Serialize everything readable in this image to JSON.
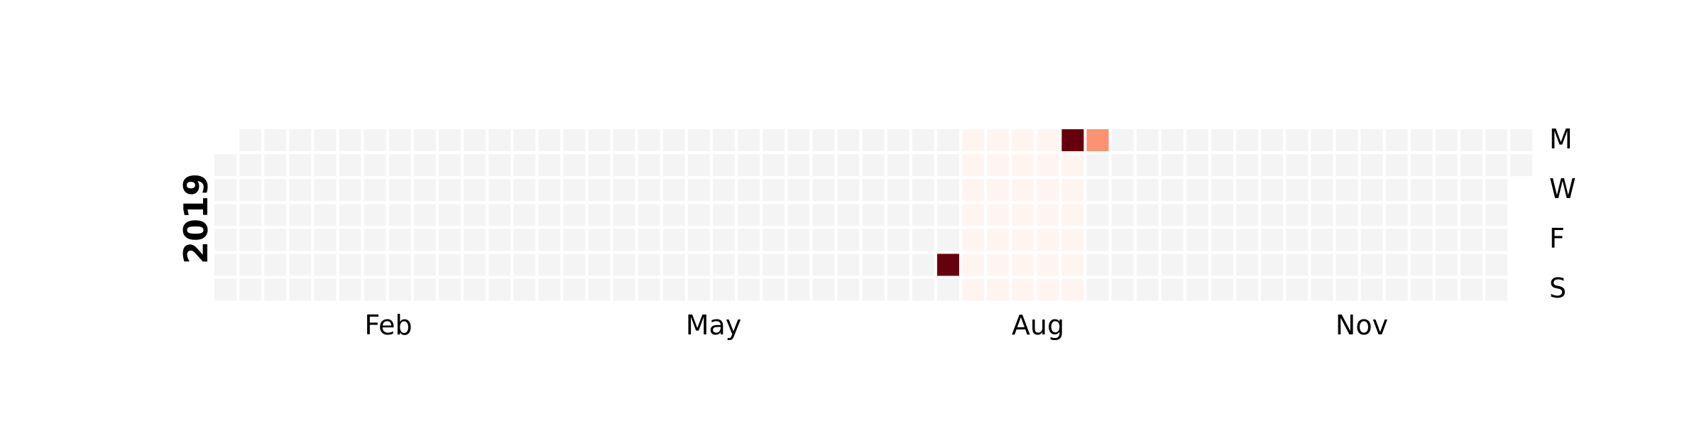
{
  "chart_data": {
    "type": "heatmap",
    "year": "2019",
    "weekday_labels": [
      "M",
      "W",
      "F",
      "S"
    ],
    "month_labels": [
      "Feb",
      "May",
      "Aug",
      "Nov"
    ],
    "empty_color": "#f4f4f4",
    "colorscale": [
      "#fff5f0",
      "#fee0d2",
      "#fcbba1",
      "#fc9272",
      "#fb6a4a",
      "#ef3b2c",
      "#cb181d",
      "#a50f15",
      "#67000d"
    ],
    "highlights": [
      {
        "date": "2019-07-27",
        "level": 0.95
      },
      {
        "date": "2019-08-26",
        "level": 1.0
      },
      {
        "date": "2019-09-02",
        "level": 0.4
      }
    ],
    "faint_range": {
      "start": "2019-07-29",
      "end": "2019-09-01",
      "level": 0.05
    }
  }
}
